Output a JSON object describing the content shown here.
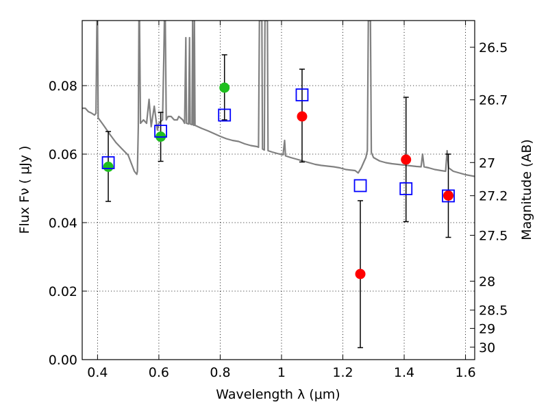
{
  "chart_data": {
    "type": "scatter",
    "xlabel": "Wavelength  λ (μm)",
    "ylabel": "Flux  Fν  ( μJy )",
    "y2label": "Magnitude (AB)",
    "xlim": [
      0.35,
      1.63
    ],
    "ylim": [
      0.0,
      0.099
    ],
    "grid": true,
    "x_ticks": [
      0.4,
      0.6,
      0.8,
      1.0,
      1.2,
      1.4,
      1.6
    ],
    "x_tick_labels": [
      "0.4",
      "0.6",
      "0.8",
      "1",
      "1.2",
      "1.4",
      "1.6"
    ],
    "y_ticks": [
      0.0,
      0.02,
      0.04,
      0.06,
      0.08
    ],
    "y_tick_labels": [
      "0.00",
      "0.02",
      "0.04",
      "0.06",
      "0.08"
    ],
    "y2_ticks": [
      {
        "label": "26.5",
        "value": 26.5
      },
      {
        "label": "26.7",
        "value": 26.7
      },
      {
        "label": "27",
        "value": 27.0
      },
      {
        "label": "27.2",
        "value": 27.2
      },
      {
        "label": "27.5",
        "value": 27.5
      },
      {
        "label": "28",
        "value": 28.0
      },
      {
        "label": "28.5",
        "value": 28.5
      },
      {
        "label": "29",
        "value": 29.0
      },
      {
        "label": "30",
        "value": 30.0
      }
    ],
    "series": [
      {
        "marker": "circle",
        "color": "#1fbf1f",
        "points": [
          {
            "x": 0.435,
            "y": 0.0563
          },
          {
            "x": 0.606,
            "y": 0.0651
          },
          {
            "x": 0.814,
            "y": 0.0794
          }
        ]
      },
      {
        "marker": "circle",
        "color": "#ff0000",
        "points": [
          {
            "x": 1.067,
            "y": 0.071
          },
          {
            "x": 1.257,
            "y": 0.025
          },
          {
            "x": 1.406,
            "y": 0.0584
          },
          {
            "x": 1.544,
            "y": 0.0479
          }
        ]
      },
      {
        "marker": "square-open",
        "color": "#0000ff",
        "points": [
          {
            "x": 0.435,
            "y": 0.0575
          },
          {
            "x": 0.606,
            "y": 0.0667
          },
          {
            "x": 0.814,
            "y": 0.0714
          },
          {
            "x": 1.067,
            "y": 0.0773
          },
          {
            "x": 1.257,
            "y": 0.0508
          },
          {
            "x": 1.406,
            "y": 0.0499
          },
          {
            "x": 1.544,
            "y": 0.0478
          }
        ]
      }
    ],
    "error_bars": [
      {
        "x": 0.435,
        "y_low": 0.0462,
        "y_high": 0.0666
      },
      {
        "x": 0.606,
        "y_low": 0.0579,
        "y_high": 0.0722
      },
      {
        "x": 0.814,
        "y_low": 0.07,
        "y_high": 0.089
      },
      {
        "x": 1.067,
        "y_low": 0.0577,
        "y_high": 0.0848
      },
      {
        "x": 1.257,
        "y_low": 0.0035,
        "y_high": 0.0464
      },
      {
        "x": 1.406,
        "y_low": 0.0403,
        "y_high": 0.0766
      },
      {
        "x": 1.544,
        "y_low": 0.0357,
        "y_high": 0.06
      }
    ],
    "model_spectrum": {
      "color": "#808080",
      "points": [
        [
          0.35,
          0.0734
        ],
        [
          0.36,
          0.0734
        ],
        [
          0.37,
          0.0724
        ],
        [
          0.38,
          0.072
        ],
        [
          0.39,
          0.0714
        ],
        [
          0.395,
          0.0719
        ],
        [
          0.398,
          0.099
        ],
        [
          0.4,
          0.099
        ],
        [
          0.402,
          0.0706
        ],
        [
          0.42,
          0.0684
        ],
        [
          0.44,
          0.0658
        ],
        [
          0.46,
          0.0634
        ],
        [
          0.48,
          0.0615
        ],
        [
          0.5,
          0.0597
        ],
        [
          0.52,
          0.055
        ],
        [
          0.528,
          0.0541
        ],
        [
          0.53,
          0.055
        ],
        [
          0.533,
          0.068
        ],
        [
          0.535,
          0.099
        ],
        [
          0.537,
          0.099
        ],
        [
          0.54,
          0.069
        ],
        [
          0.55,
          0.07
        ],
        [
          0.56,
          0.069
        ],
        [
          0.568,
          0.076
        ],
        [
          0.575,
          0.068
        ],
        [
          0.585,
          0.074
        ],
        [
          0.595,
          0.067
        ],
        [
          0.6,
          0.069
        ],
        [
          0.612,
          0.07
        ],
        [
          0.616,
          0.088
        ],
        [
          0.618,
          0.099
        ],
        [
          0.621,
          0.099
        ],
        [
          0.624,
          0.07
        ],
        [
          0.63,
          0.071
        ],
        [
          0.64,
          0.071
        ],
        [
          0.65,
          0.07
        ],
        [
          0.66,
          0.07
        ],
        [
          0.665,
          0.071
        ],
        [
          0.678,
          0.07
        ],
        [
          0.684,
          0.069
        ],
        [
          0.688,
          0.094
        ],
        [
          0.69,
          0.069
        ],
        [
          0.697,
          0.0688
        ],
        [
          0.7,
          0.094
        ],
        [
          0.702,
          0.0688
        ],
        [
          0.708,
          0.0686
        ],
        [
          0.71,
          0.099
        ],
        [
          0.712,
          0.0686
        ],
        [
          0.714,
          0.0684
        ],
        [
          0.716,
          0.099
        ],
        [
          0.718,
          0.0684
        ],
        [
          0.74,
          0.0675
        ],
        [
          0.76,
          0.0668
        ],
        [
          0.78,
          0.066
        ],
        [
          0.8,
          0.0652
        ],
        [
          0.82,
          0.0645
        ],
        [
          0.84,
          0.064
        ],
        [
          0.86,
          0.0637
        ],
        [
          0.88,
          0.063
        ],
        [
          0.9,
          0.0625
        ],
        [
          0.92,
          0.0622
        ],
        [
          0.925,
          0.062
        ],
        [
          0.928,
          0.099
        ],
        [
          0.936,
          0.099
        ],
        [
          0.938,
          0.0615
        ],
        [
          0.944,
          0.0612
        ],
        [
          0.946,
          0.099
        ],
        [
          0.954,
          0.099
        ],
        [
          0.956,
          0.061
        ],
        [
          0.97,
          0.0606
        ],
        [
          0.99,
          0.0601
        ],
        [
          1.005,
          0.0598
        ],
        [
          1.01,
          0.064
        ],
        [
          1.013,
          0.0595
        ],
        [
          1.03,
          0.059
        ],
        [
          1.05,
          0.0585
        ],
        [
          1.07,
          0.058
        ],
        [
          1.09,
          0.0575
        ],
        [
          1.11,
          0.057
        ],
        [
          1.13,
          0.0567
        ],
        [
          1.15,
          0.0565
        ],
        [
          1.17,
          0.0563
        ],
        [
          1.19,
          0.056
        ],
        [
          1.21,
          0.0555
        ],
        [
          1.23,
          0.0553
        ],
        [
          1.24,
          0.0552
        ],
        [
          1.25,
          0.0545
        ],
        [
          1.26,
          0.056
        ],
        [
          1.27,
          0.058
        ],
        [
          1.275,
          0.059
        ],
        [
          1.28,
          0.061
        ],
        [
          1.283,
          0.099
        ],
        [
          1.29,
          0.099
        ],
        [
          1.293,
          0.0605
        ],
        [
          1.3,
          0.059
        ],
        [
          1.32,
          0.058
        ],
        [
          1.34,
          0.0575
        ],
        [
          1.36,
          0.0572
        ],
        [
          1.38,
          0.057
        ],
        [
          1.4,
          0.0568
        ],
        [
          1.42,
          0.0566
        ],
        [
          1.44,
          0.0564
        ],
        [
          1.455,
          0.0563
        ],
        [
          1.46,
          0.06
        ],
        [
          1.465,
          0.0563
        ],
        [
          1.48,
          0.056
        ],
        [
          1.5,
          0.0555
        ],
        [
          1.52,
          0.0552
        ],
        [
          1.535,
          0.055
        ],
        [
          1.54,
          0.061
        ],
        [
          1.545,
          0.056
        ],
        [
          1.56,
          0.055
        ],
        [
          1.58,
          0.0545
        ],
        [
          1.6,
          0.054
        ],
        [
          1.63,
          0.0535
        ]
      ]
    }
  }
}
